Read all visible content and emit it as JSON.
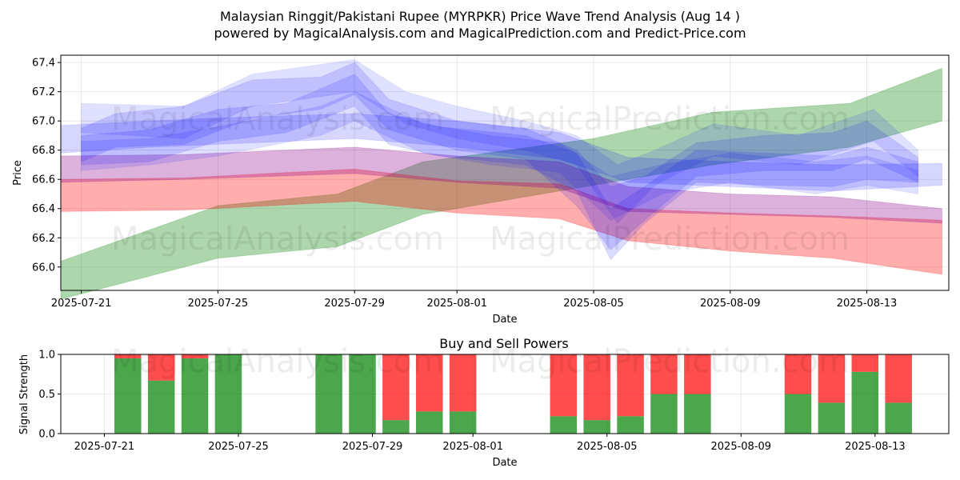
{
  "title_line1": "Malaysian Ringgit/Pakistani Rupee (MYRPKR) Price Wave Trend Analysis (Aug 14 )",
  "title_line2": "powered by MagicalAnalysis.com and MagicalPrediction.com and Predict-Price.com",
  "watermark_left": "MagicalAnalysis.com",
  "watermark_right": "MagicalPrediction.com",
  "colors": {
    "blue": "#0000ff",
    "green": "#008000",
    "red": "#ff0000",
    "purple": "#8b3a8b",
    "buy": "#008000",
    "sell": "#ff0000"
  },
  "chart_data": [
    {
      "type": "area",
      "title": "",
      "xlabel": "Date",
      "ylabel": "Price",
      "ylim": [
        65.84,
        67.45
      ],
      "xlim_days": [
        -0.6,
        25.4
      ],
      "date_origin": "2025-07-21",
      "xtick_labels": [
        "2025-07-21",
        "2025-07-25",
        "2025-07-29",
        "2025-08-01",
        "2025-08-05",
        "2025-08-09",
        "2025-08-13"
      ],
      "xtick_days": [
        0,
        4,
        8,
        11,
        15,
        19,
        23
      ],
      "ytick_values": [
        66.0,
        66.2,
        66.4,
        66.6,
        66.8,
        67.0,
        67.2,
        67.4
      ],
      "ytick_labels": [
        "66.0",
        "66.2",
        "66.4",
        "66.6",
        "66.8",
        "67.0",
        "67.2",
        "67.4"
      ],
      "bands": [
        {
          "name": "green-trend",
          "color": "#008000",
          "opacity": 0.32,
          "x": [
            -0.6,
            4,
            7.5,
            10,
            15,
            18.5,
            22.5,
            25.2
          ],
          "upper": [
            66.04,
            66.42,
            66.5,
            66.72,
            66.88,
            67.06,
            67.12,
            67.36
          ],
          "lower": [
            65.78,
            66.06,
            66.14,
            66.36,
            66.56,
            66.7,
            66.82,
            67.0
          ]
        },
        {
          "name": "red-trend",
          "color": "#ff0000",
          "opacity": 0.32,
          "x": [
            -0.6,
            3,
            8,
            11,
            14,
            16,
            19,
            22,
            25.2
          ],
          "upper": [
            66.6,
            66.61,
            66.67,
            66.59,
            66.57,
            66.4,
            66.37,
            66.35,
            66.32
          ],
          "lower": [
            66.38,
            66.39,
            66.45,
            66.37,
            66.33,
            66.18,
            66.11,
            66.06,
            65.95
          ]
        },
        {
          "name": "purple-trend",
          "color": "#8b008b",
          "opacity": 0.3,
          "x": [
            -0.6,
            3,
            8,
            11,
            14,
            16,
            19,
            22,
            25.2
          ],
          "upper": [
            66.76,
            66.77,
            66.82,
            66.76,
            66.72,
            66.55,
            66.5,
            66.48,
            66.4
          ],
          "lower": [
            66.58,
            66.6,
            66.64,
            66.58,
            66.54,
            66.38,
            66.36,
            66.34,
            66.3
          ]
        },
        {
          "name": "blue-wave-1",
          "color": "#0000ff",
          "opacity": 0.16,
          "x": [
            -0.6,
            2,
            4,
            8,
            11,
            14,
            16,
            19,
            22,
            25.2
          ],
          "upper": [
            66.97,
            67.0,
            67.02,
            67.05,
            67.0,
            66.92,
            66.75,
            66.72,
            66.7,
            66.71
          ],
          "lower": [
            66.78,
            66.82,
            66.84,
            66.88,
            66.82,
            66.74,
            66.58,
            66.55,
            66.52,
            66.56
          ]
        },
        {
          "name": "blue-wave-2",
          "color": "#0000ff",
          "opacity": 0.14,
          "x": [
            0,
            1,
            3,
            5,
            7,
            8,
            9,
            11,
            13,
            14.5,
            15.5,
            16.5,
            18,
            20,
            22,
            23,
            24.5
          ],
          "upper": [
            66.95,
            67.05,
            67.1,
            67.28,
            67.3,
            67.4,
            67.15,
            67.0,
            66.95,
            66.8,
            66.55,
            66.62,
            66.85,
            66.9,
            66.92,
            67.0,
            66.75
          ],
          "lower": [
            66.72,
            66.82,
            66.84,
            67.02,
            67.08,
            67.18,
            66.94,
            66.8,
            66.74,
            66.42,
            66.12,
            66.32,
            66.62,
            66.66,
            66.66,
            66.74,
            66.58
          ]
        },
        {
          "name": "blue-wave-3",
          "color": "#0000ff",
          "opacity": 0.14,
          "x": [
            0,
            2,
            4,
            6,
            8,
            9,
            10.5,
            13,
            14.5,
            15.5,
            16.5,
            18,
            20,
            22,
            23,
            24.5
          ],
          "upper": [
            66.9,
            66.94,
            67.08,
            67.12,
            67.32,
            67.05,
            66.96,
            66.9,
            66.78,
            66.4,
            66.55,
            66.8,
            66.78,
            66.76,
            66.82,
            66.72
          ],
          "lower": [
            66.7,
            66.72,
            66.86,
            66.92,
            67.1,
            66.84,
            66.76,
            66.7,
            66.52,
            66.05,
            66.3,
            66.58,
            66.56,
            66.55,
            66.6,
            66.58
          ]
        },
        {
          "name": "blue-wave-4",
          "color": "#0000ff",
          "opacity": 0.12,
          "x": [
            0,
            3,
            5,
            8,
            9.5,
            11,
            13,
            14.5,
            15.7,
            16.8,
            18.5,
            21,
            23.2,
            24.5
          ],
          "upper": [
            67.12,
            67.1,
            67.32,
            67.42,
            67.2,
            67.1,
            67.0,
            66.9,
            66.7,
            66.8,
            66.98,
            66.9,
            67.08,
            66.8
          ],
          "lower": [
            66.92,
            66.88,
            67.1,
            67.2,
            66.98,
            66.88,
            66.8,
            66.7,
            66.3,
            66.56,
            66.76,
            66.7,
            66.86,
            66.62
          ]
        },
        {
          "name": "blue-wave-5",
          "color": "#0000ff",
          "opacity": 0.12,
          "x": [
            0,
            2,
            4,
            7,
            8,
            10,
            12,
            14,
            15.5,
            17,
            19,
            21.5,
            23,
            24.5
          ],
          "upper": [
            66.86,
            66.88,
            66.96,
            67.1,
            67.2,
            66.98,
            66.9,
            66.85,
            66.62,
            66.7,
            66.78,
            66.72,
            66.76,
            66.66
          ],
          "lower": [
            66.66,
            66.7,
            66.76,
            66.9,
            67.0,
            66.78,
            66.7,
            66.65,
            66.32,
            66.5,
            66.58,
            66.5,
            66.56,
            66.5
          ]
        }
      ]
    },
    {
      "type": "bar",
      "title": "Buy and Sell Powers",
      "xlabel": "Date",
      "ylabel": "Signal Strength",
      "ylim": [
        0,
        1
      ],
      "xlim_days": [
        -1.3,
        25.2
      ],
      "ytick_values": [
        0.0,
        0.5,
        1.0
      ],
      "ytick_labels": [
        "0.0",
        "0.5",
        "1.0"
      ],
      "xtick_labels": [
        "2025-07-21",
        "2025-07-25",
        "2025-07-29",
        "2025-08-01",
        "2025-08-05",
        "2025-08-09",
        "2025-08-13"
      ],
      "xtick_days": [
        0,
        4,
        8,
        11,
        15,
        19,
        23
      ],
      "bar_width_days": 0.8,
      "days": [
        0.7,
        1.7,
        2.7,
        3.7,
        6.7,
        7.7,
        8.7,
        9.7,
        10.7,
        13.7,
        14.7,
        15.7,
        16.7,
        17.7,
        20.7,
        21.7,
        22.7,
        23.7
      ],
      "series": [
        {
          "name": "Buy",
          "color": "#008000",
          "values": [
            0.95,
            0.67,
            0.95,
            1.0,
            1.0,
            1.0,
            0.17,
            0.28,
            0.28,
            0.22,
            0.17,
            0.22,
            0.5,
            0.5,
            0.5,
            0.39,
            0.78,
            0.39
          ]
        },
        {
          "name": "Sell",
          "color": "#ff0000",
          "values": [
            0.05,
            0.33,
            0.05,
            0.0,
            0.0,
            0.0,
            0.83,
            0.72,
            0.72,
            0.78,
            0.83,
            0.78,
            0.5,
            0.5,
            0.5,
            0.61,
            0.22,
            0.61
          ]
        }
      ]
    }
  ]
}
